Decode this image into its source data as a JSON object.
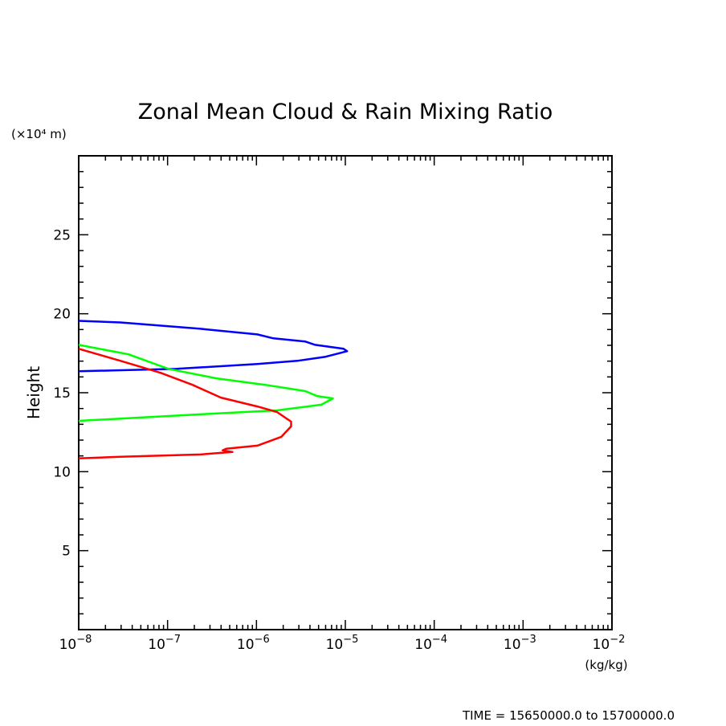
{
  "chart_data": {
    "type": "line",
    "title": "Zonal Mean Cloud & Rain Mixing Ratio",
    "xlabel": "(kg/kg)",
    "ylabel": "Height",
    "yunit": "(×10⁴ m)",
    "xscale": "log",
    "xlim_log10": [
      -8,
      -2
    ],
    "ylim": [
      0,
      30
    ],
    "xtick_exponents": [
      "-8",
      "-7",
      "-6",
      "-5",
      "-4",
      "-3",
      "-2"
    ],
    "ytick_labels": [
      "5",
      "10",
      "15",
      "20",
      "25"
    ],
    "ytick_values": [
      5,
      10,
      15,
      20,
      25
    ],
    "grid": false,
    "footer": "TIME = 15650000.0 to 15700000.0",
    "series": [
      {
        "name": "blue",
        "color": "#0000ff",
        "x_log10": [
          -8,
          -7.53,
          -6.63,
          -5.99,
          -5.81,
          -5.45,
          -5.34,
          -5.02,
          -4.98,
          -5.23,
          -5.54,
          -5.99,
          -6.9,
          -8
        ],
        "y": [
          19.55,
          19.45,
          19.05,
          18.69,
          18.44,
          18.24,
          18.03,
          17.78,
          17.63,
          17.27,
          17.02,
          16.82,
          16.51,
          16.36
        ]
      },
      {
        "name": "green",
        "color": "#00ff00",
        "x_log10": [
          -8,
          -7.44,
          -6.99,
          -6.45,
          -5.9,
          -5.45,
          -5.32,
          -5.14,
          -5.27,
          -5.77,
          -6.63,
          -8
        ],
        "y": [
          18.03,
          17.43,
          16.51,
          15.91,
          15.5,
          15.1,
          14.79,
          14.64,
          14.24,
          13.88,
          13.63,
          13.22
        ]
      },
      {
        "name": "red",
        "color": "#ff0000",
        "x_log10": [
          -8,
          -7.53,
          -7.08,
          -6.72,
          -6.4,
          -5.99,
          -5.77,
          -5.61,
          -5.61,
          -5.72,
          -5.99,
          -6.34,
          -6.38,
          -6.27,
          -6.63,
          -7.53,
          -8
        ],
        "y": [
          17.78,
          17.02,
          16.26,
          15.5,
          14.69,
          14.13,
          13.78,
          13.17,
          12.87,
          12.21,
          11.65,
          11.45,
          11.35,
          11.25,
          11.09,
          10.94,
          10.84
        ]
      }
    ]
  }
}
